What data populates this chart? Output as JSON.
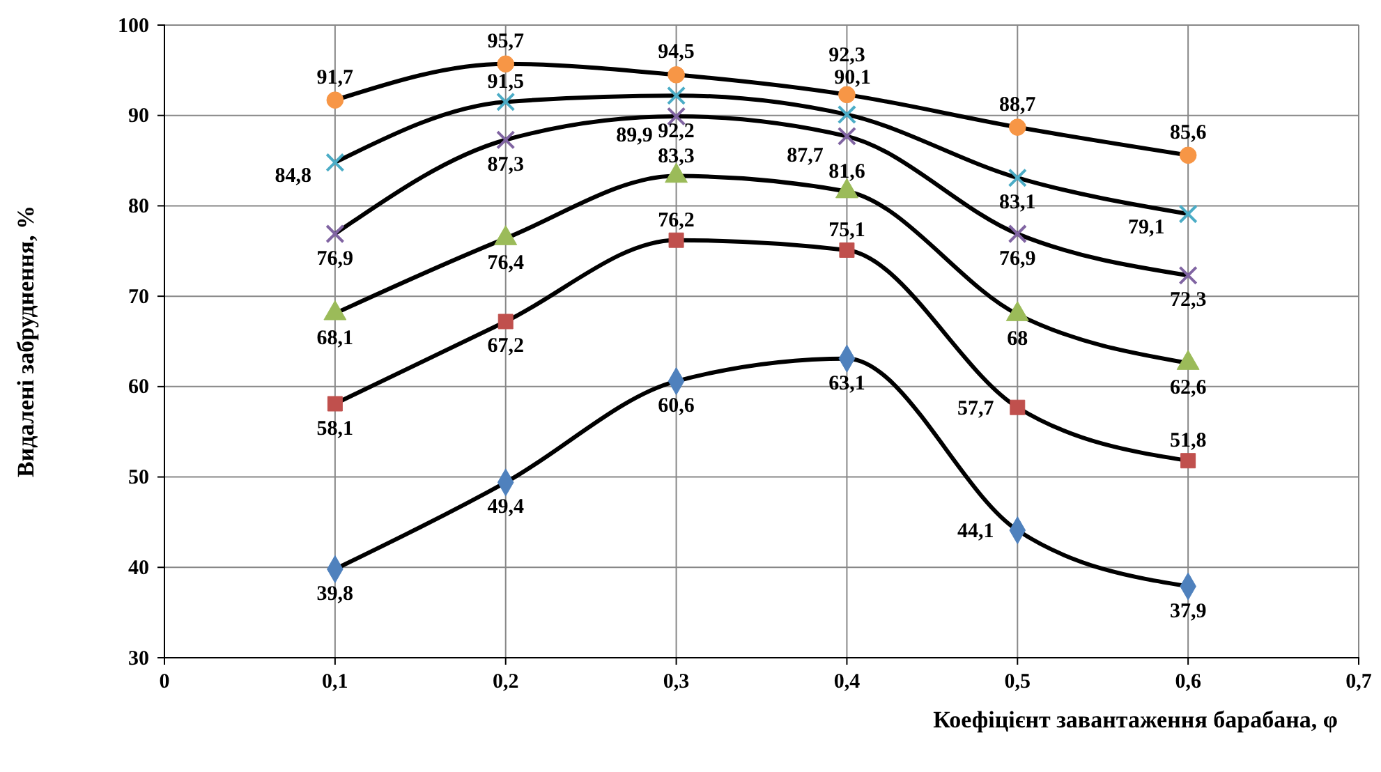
{
  "chart_data": {
    "type": "line",
    "xlabel": "Коефіцієнт завантаження барабана, φ",
    "ylabel": "Видалені забруднення, %",
    "x": [
      0.1,
      0.2,
      0.3,
      0.4,
      0.5,
      0.6
    ],
    "xlim": [
      0,
      0.7
    ],
    "xticks": [
      0,
      {
        "value": 0.1,
        "label": "0,1"
      },
      {
        "value": 0.2,
        "label": "0,2"
      },
      {
        "value": 0.3,
        "label": "0,3"
      },
      {
        "value": 0.4,
        "label": "0,4"
      },
      {
        "value": 0.5,
        "label": "0,5"
      },
      {
        "value": 0.6,
        "label": "0,6"
      },
      {
        "value": 0.7,
        "label": "0,7"
      }
    ],
    "ylim": [
      30,
      100
    ],
    "yticks": [
      30,
      40,
      50,
      60,
      70,
      80,
      90,
      100
    ],
    "grid": true,
    "series": [
      {
        "color": "#4f81bd",
        "marker": "diamond",
        "values": [
          39.8,
          49.4,
          60.6,
          63.1,
          44.1,
          37.9
        ],
        "value_labels": [
          "39,8",
          "49,4",
          "60,6",
          "63,1",
          "44,1",
          "37,9"
        ]
      },
      {
        "color": "#c0504d",
        "marker": "square",
        "values": [
          58.1,
          67.2,
          76.2,
          75.1,
          57.7,
          51.8
        ],
        "value_labels": [
          "58,1",
          "67,2",
          "76,2",
          "75,1",
          "57,7",
          "51,8"
        ]
      },
      {
        "color": "#9bbb59",
        "marker": "triangle",
        "values": [
          68.1,
          76.4,
          83.3,
          81.6,
          68,
          62.6
        ],
        "value_labels": [
          "68,1",
          "76,4",
          "83,3",
          "81,6",
          "68",
          "62,6"
        ]
      },
      {
        "color": "#8064a2",
        "marker": "cross",
        "values": [
          76.9,
          87.3,
          89.9,
          87.7,
          76.9,
          72.3
        ],
        "value_labels": [
          "76,9",
          "87,3",
          "89,9",
          "87,7",
          "76,9",
          "72,3"
        ]
      },
      {
        "color": "#4bacc6",
        "marker": "cross",
        "values": [
          84.8,
          91.5,
          92.2,
          90.1,
          83.1,
          79.1
        ],
        "value_labels": [
          "84,8",
          "91,5",
          "92,2",
          "90,1",
          "83,1",
          "79,1"
        ]
      },
      {
        "color": "#f79646",
        "marker": "circle",
        "values": [
          91.7,
          95.7,
          94.5,
          92.3,
          88.7,
          85.6
        ],
        "value_labels": [
          "91,7",
          "95,7",
          "94,5",
          "92,3",
          "88,7",
          "85,6"
        ]
      }
    ],
    "line_style": "solid"
  }
}
